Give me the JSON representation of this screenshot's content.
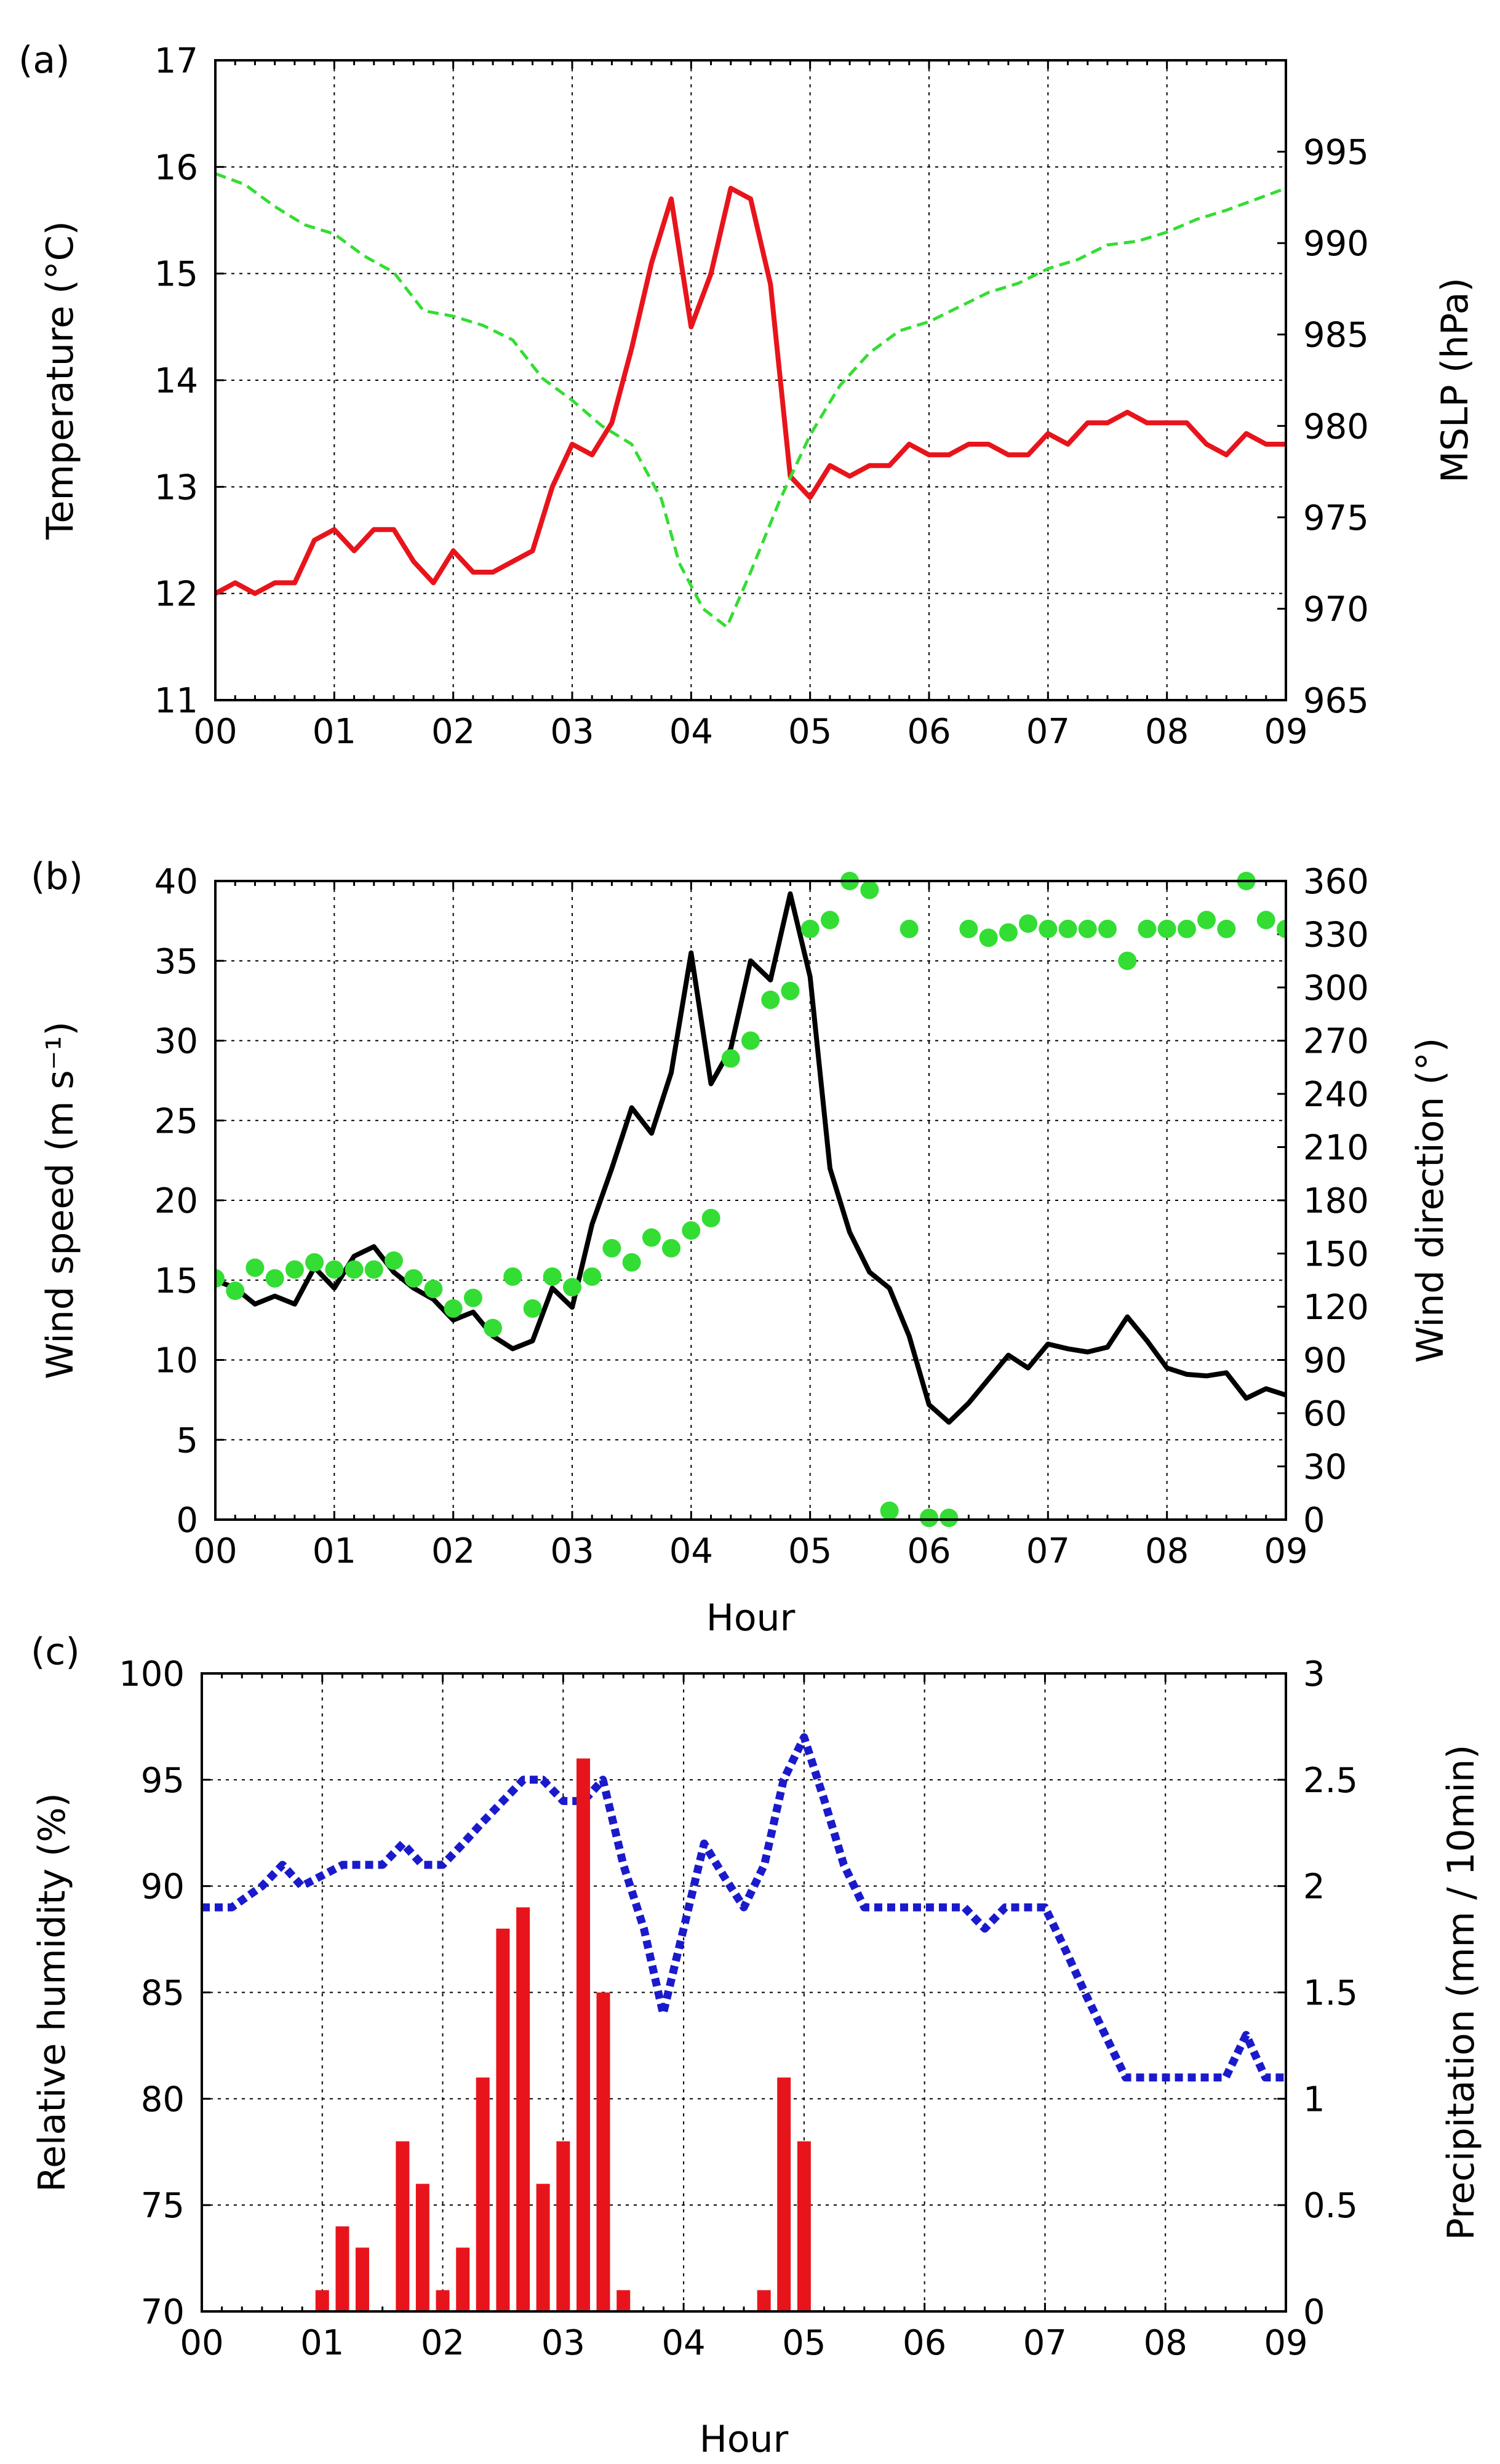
{
  "chart_data": [
    {
      "panel_label": "(a)",
      "type": "line",
      "xlabel": "",
      "x_ticks": [
        "00",
        "01",
        "02",
        "03",
        "04",
        "05",
        "06",
        "07",
        "08",
        "09"
      ],
      "xlim": [
        0,
        9
      ],
      "ylabel": "Temperature (°C)",
      "ylim": [
        11,
        17
      ],
      "y_ticks": [
        "11",
        "12",
        "13",
        "14",
        "15",
        "16",
        "17"
      ],
      "y2label": "MSLP (hPa)",
      "y2lim": [
        965,
        1000
      ],
      "y2_ticks": [
        "965",
        "970",
        "975",
        "980",
        "985",
        "990",
        "995"
      ],
      "series": [
        {
          "name": "Temperature",
          "axis": "left",
          "style": "solid",
          "color": "#e8141c",
          "x": [
            0,
            0.167,
            0.333,
            0.5,
            0.667,
            0.833,
            1,
            1.167,
            1.333,
            1.5,
            1.667,
            1.833,
            2,
            2.167,
            2.333,
            2.5,
            2.667,
            2.833,
            3,
            3.167,
            3.333,
            3.5,
            3.667,
            3.833,
            4,
            4.167,
            4.333,
            4.5,
            4.667,
            4.833,
            5,
            5.167,
            5.333,
            5.5,
            5.667,
            5.833,
            6,
            6.167,
            6.333,
            6.5,
            6.667,
            6.833,
            7,
            7.167,
            7.333,
            7.5,
            7.667,
            7.833,
            8,
            8.167,
            8.333,
            8.5,
            8.667,
            8.833,
            9
          ],
          "values": [
            12.0,
            12.1,
            12.0,
            12.1,
            12.1,
            12.5,
            12.6,
            12.4,
            12.6,
            12.6,
            12.3,
            12.1,
            12.4,
            12.2,
            12.2,
            12.3,
            12.4,
            13.0,
            13.4,
            13.3,
            13.6,
            14.3,
            15.1,
            15.7,
            14.5,
            15.0,
            15.8,
            15.7,
            14.9,
            13.1,
            12.9,
            13.2,
            13.1,
            13.2,
            13.2,
            13.4,
            13.3,
            13.3,
            13.4,
            13.4,
            13.3,
            13.3,
            13.5,
            13.4,
            13.6,
            13.6,
            13.7,
            13.6,
            13.6,
            13.6,
            13.4,
            13.3,
            13.5,
            13.4,
            13.4
          ]
        },
        {
          "name": "MSLP",
          "axis": "right",
          "style": "dashed",
          "color": "#33dd33",
          "x": [
            0,
            0.25,
            0.5,
            0.75,
            1,
            1.25,
            1.5,
            1.75,
            2,
            2.25,
            2.5,
            2.75,
            3,
            3.25,
            3.5,
            3.75,
            3.9,
            4.1,
            4.3,
            4.5,
            4.75,
            5,
            5.25,
            5.5,
            5.75,
            6,
            6.25,
            6.5,
            6.75,
            7,
            7.25,
            7.5,
            7.75,
            8,
            8.25,
            8.5,
            8.75,
            9
          ],
          "values": [
            993.8,
            993.2,
            992.0,
            991.0,
            990.5,
            989.3,
            988.4,
            986.3,
            986.0,
            985.5,
            984.7,
            982.6,
            981.4,
            980.0,
            979.0,
            976.0,
            972.5,
            970.0,
            969.0,
            972.0,
            976.0,
            979.5,
            982.2,
            984.0,
            985.2,
            985.7,
            986.5,
            987.3,
            987.8,
            988.6,
            989.1,
            989.9,
            990.1,
            990.6,
            991.3,
            991.8,
            992.4,
            993.0
          ]
        }
      ]
    },
    {
      "panel_label": "(b)",
      "type": "line",
      "xlabel": "Hour",
      "x_ticks": [
        "00",
        "01",
        "02",
        "03",
        "04",
        "05",
        "06",
        "07",
        "08",
        "09"
      ],
      "xlim": [
        0,
        9
      ],
      "ylabel": "Wind speed (m s⁻¹)",
      "ylim": [
        0,
        40
      ],
      "y_ticks": [
        "0",
        "5",
        "10",
        "15",
        "20",
        "25",
        "30",
        "35",
        "40"
      ],
      "y2label": "Wind direction (°)",
      "y2lim": [
        0,
        360
      ],
      "y2_ticks": [
        "0",
        "30",
        "60",
        "90",
        "120",
        "150",
        "180",
        "210",
        "240",
        "270",
        "300",
        "330",
        "360"
      ],
      "series": [
        {
          "name": "Wind speed",
          "axis": "left",
          "style": "solid",
          "color": "#000000",
          "x": [
            0,
            0.167,
            0.333,
            0.5,
            0.667,
            0.833,
            1,
            1.167,
            1.333,
            1.5,
            1.667,
            1.833,
            2,
            2.167,
            2.333,
            2.5,
            2.667,
            2.833,
            3,
            3.167,
            3.333,
            3.5,
            3.667,
            3.833,
            4,
            4.167,
            4.333,
            4.5,
            4.667,
            4.833,
            5,
            5.167,
            5.333,
            5.5,
            5.667,
            5.833,
            6,
            6.167,
            6.333,
            6.5,
            6.667,
            6.833,
            7,
            7.167,
            7.333,
            7.5,
            7.667,
            7.833,
            8,
            8.167,
            8.333,
            8.5,
            8.667,
            8.833,
            9
          ],
          "values": [
            15.0,
            14.5,
            13.5,
            14.0,
            13.5,
            15.8,
            14.5,
            16.5,
            17.1,
            15.5,
            14.5,
            13.8,
            12.5,
            13.0,
            11.5,
            10.7,
            11.2,
            14.5,
            13.3,
            18.5,
            22.0,
            25.8,
            24.2,
            28.0,
            35.5,
            27.3,
            29.5,
            35.0,
            33.8,
            39.2,
            34.0,
            22.0,
            18.0,
            15.5,
            14.5,
            11.5,
            7.2,
            6.1,
            7.3,
            8.8,
            10.3,
            9.5,
            11.0,
            10.7,
            10.5,
            10.8,
            12.7,
            11.2,
            9.5,
            9.1,
            9.0,
            9.2,
            7.6,
            8.2,
            7.8
          ]
        },
        {
          "name": "Wind direction",
          "axis": "right",
          "style": "dots",
          "color": "#33dd33",
          "x": [
            0,
            0.167,
            0.333,
            0.5,
            0.667,
            0.833,
            1,
            1.167,
            1.333,
            1.5,
            1.667,
            1.833,
            2,
            2.167,
            2.333,
            2.5,
            2.667,
            2.833,
            3,
            3.167,
            3.333,
            3.5,
            3.667,
            3.833,
            4,
            4.167,
            4.333,
            4.5,
            4.667,
            4.833,
            5,
            5.167,
            5.333,
            5.5,
            5.667,
            5.833,
            6,
            6.167,
            6.333,
            6.5,
            6.667,
            6.833,
            7,
            7.167,
            7.333,
            7.5,
            7.667,
            7.833,
            8,
            8.167,
            8.333,
            8.5,
            8.667,
            8.833,
            9
          ],
          "values": [
            136,
            129,
            142,
            136,
            141,
            145,
            141,
            141,
            141,
            146,
            136,
            130,
            119,
            125,
            108,
            137,
            119,
            137,
            131,
            137,
            153,
            145,
            159,
            153,
            163,
            170,
            260,
            270,
            293,
            298,
            333,
            338,
            360,
            355,
            5,
            333,
            1,
            1,
            333,
            328,
            331,
            336,
            333,
            333,
            333,
            333,
            315,
            333,
            333,
            333,
            338,
            333,
            360,
            338,
            333
          ]
        }
      ]
    },
    {
      "panel_label": "(c)",
      "type": "bar+line",
      "xlabel": "Hour",
      "x_ticks": [
        "00",
        "01",
        "02",
        "03",
        "04",
        "05",
        "06",
        "07",
        "08",
        "09"
      ],
      "xlim": [
        0,
        9
      ],
      "ylabel": "Relative humidity (%)",
      "ylim": [
        70,
        100
      ],
      "y_ticks": [
        "70",
        "75",
        "80",
        "85",
        "90",
        "95",
        "100"
      ],
      "y2label": "Precipitation (mm / 10min)",
      "y2lim": [
        0,
        3
      ],
      "y2_ticks": [
        "0",
        "0.5",
        "1",
        "1.5",
        "2",
        "2.5",
        "3"
      ],
      "series": [
        {
          "name": "Relative humidity",
          "axis": "left",
          "style": "dotted",
          "color": "#1a1acc",
          "x": [
            0,
            0.25,
            0.5,
            0.67,
            0.83,
            1,
            1.17,
            1.33,
            1.5,
            1.67,
            1.83,
            2,
            2.17,
            2.33,
            2.5,
            2.67,
            2.83,
            3,
            3.17,
            3.33,
            3.5,
            3.67,
            3.83,
            4,
            4.17,
            4.33,
            4.5,
            4.67,
            4.83,
            5,
            5.17,
            5.33,
            5.5,
            5.67,
            5.83,
            6,
            6.17,
            6.33,
            6.5,
            6.67,
            6.83,
            7,
            7.17,
            7.33,
            7.5,
            7.67,
            7.83,
            8,
            8.17,
            8.33,
            8.5,
            8.67,
            8.83,
            9
          ],
          "values": [
            89,
            89,
            90,
            91,
            90,
            90.5,
            91,
            91,
            91,
            92,
            91,
            91,
            92,
            93,
            94,
            95,
            95,
            94,
            94,
            95,
            91,
            88,
            84,
            88,
            92,
            90.5,
            89,
            91,
            95,
            97,
            94,
            91,
            89,
            89,
            89,
            89,
            89,
            89,
            88,
            89,
            89,
            89,
            87,
            85,
            83,
            81,
            81,
            81,
            81,
            81,
            81,
            83,
            81,
            81
          ]
        },
        {
          "name": "Precipitation",
          "axis": "right",
          "style": "bar",
          "color": "#e8141c",
          "x": [
            1,
            1.167,
            1.333,
            1.667,
            1.833,
            2,
            2.167,
            2.333,
            2.5,
            2.667,
            2.833,
            3,
            3.167,
            3.333,
            3.5,
            4.667,
            4.833,
            5
          ],
          "values": [
            0.1,
            0.4,
            0.3,
            0.8,
            0.6,
            0.1,
            0.3,
            1.1,
            1.8,
            1.9,
            0.6,
            0.8,
            2.6,
            1.5,
            0.1,
            0.1,
            1.1,
            0.8
          ]
        }
      ]
    }
  ]
}
